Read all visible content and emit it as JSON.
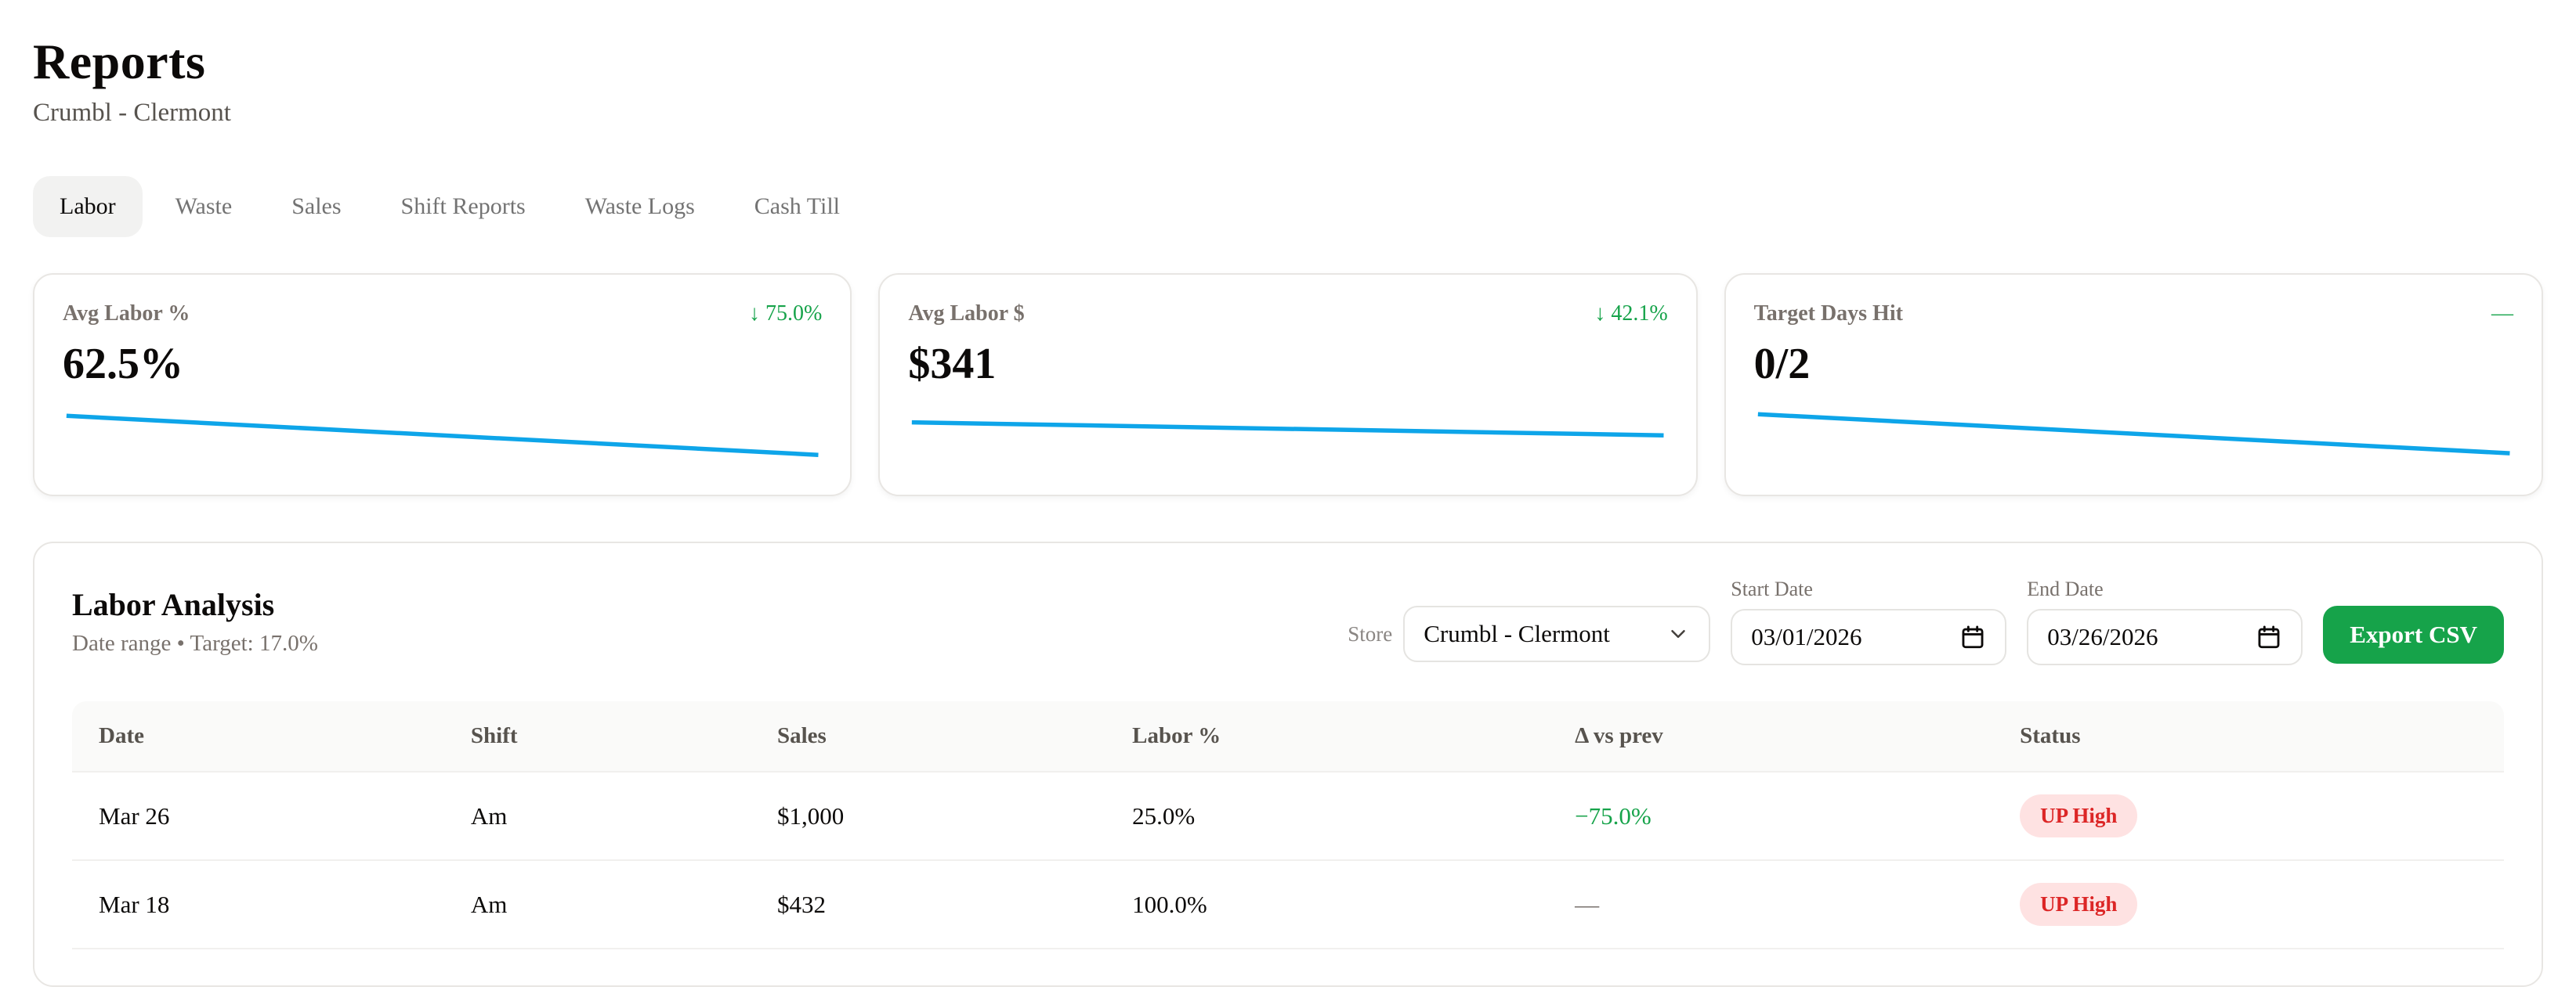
{
  "page": {
    "title": "Reports",
    "subtitle": "Crumbl - Clermont"
  },
  "tabs": [
    {
      "label": "Labor",
      "active": true
    },
    {
      "label": "Waste",
      "active": false
    },
    {
      "label": "Sales",
      "active": false
    },
    {
      "label": "Shift Reports",
      "active": false
    },
    {
      "label": "Waste Logs",
      "active": false
    },
    {
      "label": "Cash Till",
      "active": false
    }
  ],
  "stat_cards": [
    {
      "label": "Avg Labor %",
      "value": "62.5%",
      "delta": "↓ 75.0%",
      "sparkline": {
        "points": [
          [
            0.5,
            32
          ],
          [
            99.5,
            80
          ]
        ]
      }
    },
    {
      "label": "Avg Labor $",
      "value": "$341",
      "delta": "↓ 42.1%",
      "sparkline": {
        "points": [
          [
            0.5,
            40
          ],
          [
            99.5,
            56
          ]
        ]
      }
    },
    {
      "label": "Target Days Hit",
      "value": "0/2",
      "delta": "—",
      "sparkline": {
        "points": [
          [
            0.5,
            30
          ],
          [
            99.5,
            78
          ]
        ]
      }
    }
  ],
  "panel": {
    "title": "Labor Analysis",
    "subtitle": "Date range • Target: 17.0%",
    "store_label": "Store",
    "store_value": "Crumbl - Clermont",
    "start_date_label": "Start Date",
    "start_date_value": "03/01/2026",
    "end_date_label": "End Date",
    "end_date_value": "03/26/2026",
    "export_label": "Export CSV"
  },
  "table": {
    "columns": [
      "Date",
      "Shift",
      "Sales",
      "Labor %",
      "Δ vs prev",
      "Status"
    ],
    "rows": [
      {
        "date": "Mar 26",
        "shift": "Am",
        "sales": "$1,000",
        "labor": "25.0%",
        "delta": "−75.0%",
        "status": "UP High"
      },
      {
        "date": "Mar 18",
        "shift": "Am",
        "sales": "$432",
        "labor": "100.0%",
        "delta": "—",
        "status": "UP High"
      }
    ]
  },
  "colors": {
    "accent_green": "#16a34a",
    "sparkline_blue": "#0ea5e9",
    "badge_background": "#fee2e2",
    "badge_text": "#dc2626",
    "active_tab_background": "#f2f2f1"
  }
}
